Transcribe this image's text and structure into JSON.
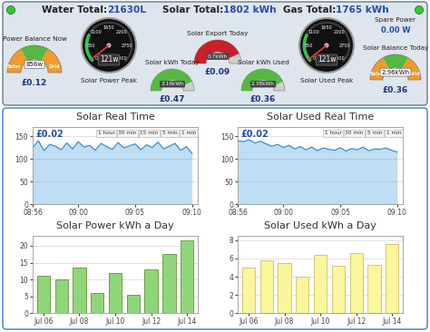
{
  "header": {
    "items": [
      {
        "label": "Water Total:",
        "value": "21630L"
      },
      {
        "label": "Solar Total:",
        "value": "1802 kWh"
      },
      {
        "label": "Gas Total:",
        "value": "1765 kWh"
      }
    ]
  },
  "gauges": [
    {
      "type": "balance",
      "title": "Power Balance Now",
      "reading": "856w",
      "cost": "£0.12",
      "left": "Solar",
      "right": "Grid"
    },
    {
      "type": "dial",
      "title": "Solar Power Peak",
      "reading": "121w",
      "scale": [
        0,
        550,
        1100,
        1650,
        2200,
        2750,
        3300
      ]
    },
    {
      "type": "meter",
      "title": "Solar kWh Today",
      "reading": "3.16kWh",
      "cost": "£0.47",
      "color": "#55b840"
    },
    {
      "type": "meter",
      "title": "Solar Export Today",
      "reading": "0.7kWh",
      "cost": "£0.09",
      "color": "#c8202a"
    },
    {
      "type": "meter",
      "title": "Solar kWh Used",
      "reading": "2.38kWh",
      "cost": "£0.36",
      "color": "#55b840"
    },
    {
      "type": "dial",
      "title": "Solar Used Peak",
      "reading": "121w",
      "scale": [
        0,
        550,
        1100,
        1650,
        2200,
        2750,
        3300
      ]
    },
    {
      "type": "balance",
      "title": "Solar Balance Today",
      "reading": "2.96kWh",
      "cost": "£0.36",
      "left": "Solar",
      "right": "Grid",
      "caption": "Spare Power",
      "caption_value": "0.00 W"
    }
  ],
  "chart_data": [
    {
      "type": "area",
      "title": "Solar Real Time",
      "price": "£0.02",
      "buttons": [
        "1 hour",
        "30 min",
        "15 min",
        "5 min",
        "1 min"
      ],
      "x": [
        536,
        536.5,
        537,
        537.5,
        538,
        538.5,
        539,
        539.5,
        540,
        540.5,
        541,
        541.5,
        542,
        542.5,
        543,
        543.5,
        544,
        544.5,
        545,
        545.5,
        546,
        546.5,
        547,
        547.5,
        548,
        548.5,
        549,
        549.5,
        550
      ],
      "values": [
        125,
        140,
        118,
        132,
        128,
        120,
        135,
        122,
        138,
        126,
        130,
        119,
        134,
        127,
        121,
        136,
        124,
        129,
        133,
        120,
        131,
        125,
        137,
        122,
        128,
        134,
        119,
        127,
        112
      ],
      "color": "#2e8fd8",
      "xlim": [
        536,
        550.5
      ],
      "xticks": [
        {
          "value": 536,
          "label": "08:56"
        },
        {
          "value": 540,
          "label": "09:00"
        },
        {
          "value": 545,
          "label": "09:05"
        },
        {
          "value": 550,
          "label": "09:10"
        }
      ],
      "ylim": [
        0,
        170
      ],
      "yticks": [
        0,
        50,
        100,
        150
      ],
      "grid": true
    },
    {
      "type": "area",
      "title": "Solar Used Real Time",
      "price": "£0.02",
      "buttons": [
        "1 hour",
        "30 min",
        "5 min",
        "1 min"
      ],
      "x": [
        536,
        536.5,
        537,
        537.5,
        538,
        538.5,
        539,
        539.5,
        540,
        540.5,
        541,
        541.5,
        542,
        542.5,
        543,
        543.5,
        544,
        544.5,
        545,
        545.5,
        546,
        546.5,
        547,
        547.5,
        548,
        548.5,
        549,
        549.5,
        550
      ],
      "values": [
        140,
        138,
        142,
        135,
        139,
        133,
        128,
        132,
        125,
        130,
        122,
        127,
        120,
        126,
        118,
        124,
        121,
        119,
        125,
        117,
        123,
        120,
        126,
        118,
        122,
        121,
        124,
        119,
        115
      ],
      "color": "#2e8fd8",
      "xlim": [
        536,
        550.5
      ],
      "xticks": [
        {
          "value": 536,
          "label": "08:56"
        },
        {
          "value": 540,
          "label": "09:00"
        },
        {
          "value": 545,
          "label": "09:05"
        },
        {
          "value": 550,
          "label": "09:10"
        }
      ],
      "ylim": [
        0,
        170
      ],
      "yticks": [
        0,
        50,
        100,
        150
      ],
      "grid": true
    },
    {
      "type": "bar",
      "title": "Solar Power kWh a Day",
      "categories": [
        "Jul 06",
        null,
        "Jul 08",
        null,
        "Jul 10",
        null,
        "Jul 12",
        null,
        "Jul 14"
      ],
      "values": [
        11,
        10,
        13.5,
        6,
        12,
        5.5,
        13,
        17.5,
        21.5
      ],
      "color": "#8fd67a",
      "ylim": [
        0,
        23
      ],
      "yticks": [
        0,
        5,
        10,
        15,
        20
      ],
      "grid": true
    },
    {
      "type": "bar",
      "title": "Solar Used kWh a Day",
      "categories": [
        "Jul 06",
        null,
        "Jul 08",
        null,
        "Jul 10",
        null,
        "Jul 12",
        null,
        "Jul 14"
      ],
      "values": [
        5,
        5.8,
        5.5,
        4,
        6.4,
        5.2,
        6.6,
        5.3,
        7.6
      ],
      "color": "#fbf59b",
      "ylim": [
        0,
        8.5
      ],
      "yticks": [
        0,
        2,
        4,
        6,
        8
      ],
      "grid": true
    }
  ]
}
